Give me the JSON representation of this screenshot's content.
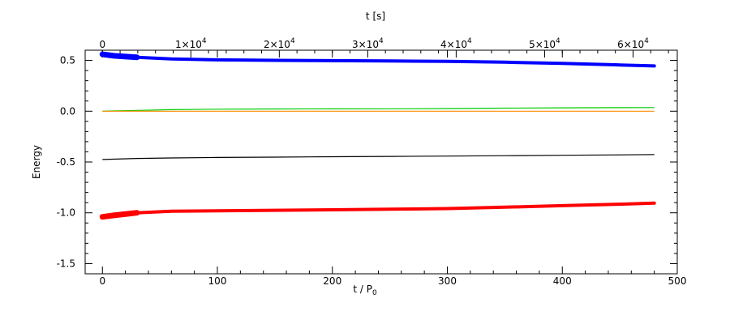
{
  "chart_data": {
    "type": "line",
    "xlabel_bottom": "t / P",
    "xlabel_bottom_sub": "0",
    "xlabel_top": "t [s]",
    "ylabel": "Energy",
    "xlim": [
      -15,
      500
    ],
    "ylim": [
      -1.6,
      0.6
    ],
    "x_ticks": [
      {
        "value": 0,
        "label": "0"
      },
      {
        "value": 100,
        "label": "100"
      },
      {
        "value": 200,
        "label": "200"
      },
      {
        "value": 300,
        "label": "300"
      },
      {
        "value": 400,
        "label": "400"
      },
      {
        "value": 500,
        "label": "500"
      }
    ],
    "y_ticks": [
      {
        "value": 0.5,
        "label": "0.5"
      },
      {
        "value": 0.0,
        "label": "0.0"
      },
      {
        "value": -0.5,
        "label": "-0.5"
      },
      {
        "value": -1.0,
        "label": "-1.0"
      },
      {
        "value": -1.5,
        "label": "-1.5"
      }
    ],
    "top_axis_x_per_unit": 130,
    "top_ticks": [
      {
        "value": 0,
        "label": "0",
        "exp": ""
      },
      {
        "value": 10000,
        "label": "1×10",
        "exp": "4"
      },
      {
        "value": 20000,
        "label": "2×10",
        "exp": "4"
      },
      {
        "value": 30000,
        "label": "3×10",
        "exp": "4"
      },
      {
        "value": 40000,
        "label": "4×10",
        "exp": "4"
      },
      {
        "value": 50000,
        "label": "5×10",
        "exp": "4"
      },
      {
        "value": 60000,
        "label": "6×10",
        "exp": "4"
      }
    ],
    "series": [
      {
        "color": "#0000ff",
        "thick": true,
        "x": [
          0,
          10,
          30,
          60,
          100,
          150,
          200,
          250,
          300,
          350,
          400,
          450,
          480
        ],
        "y": [
          0.56,
          0.545,
          0.53,
          0.515,
          0.505,
          0.5,
          0.497,
          0.494,
          0.49,
          0.482,
          0.47,
          0.455,
          0.445
        ]
      },
      {
        "color": "#00cc00",
        "thick": false,
        "x": [
          0,
          30,
          60,
          100,
          150,
          200,
          250,
          300,
          350,
          400,
          450,
          480
        ],
        "y": [
          0.0,
          0.008,
          0.015,
          0.02,
          0.022,
          0.023,
          0.024,
          0.026,
          0.03,
          0.033,
          0.035,
          0.036
        ]
      },
      {
        "color": "#ff8c00",
        "thick": false,
        "x": [
          0,
          480
        ],
        "y": [
          0.0,
          0.0
        ]
      },
      {
        "color": "#000000",
        "thick": false,
        "x": [
          0,
          30,
          60,
          100,
          150,
          200,
          250,
          300,
          350,
          400,
          450,
          480
        ],
        "y": [
          -0.475,
          -0.465,
          -0.46,
          -0.455,
          -0.452,
          -0.448,
          -0.445,
          -0.442,
          -0.438,
          -0.434,
          -0.43,
          -0.427
        ]
      },
      {
        "color": "#ff0000",
        "thick": true,
        "x": [
          0,
          10,
          30,
          60,
          100,
          150,
          200,
          250,
          300,
          350,
          400,
          450,
          480
        ],
        "y": [
          -1.04,
          -1.025,
          -1.0,
          -0.985,
          -0.98,
          -0.975,
          -0.97,
          -0.965,
          -0.958,
          -0.945,
          -0.93,
          -0.915,
          -0.905
        ]
      }
    ]
  }
}
